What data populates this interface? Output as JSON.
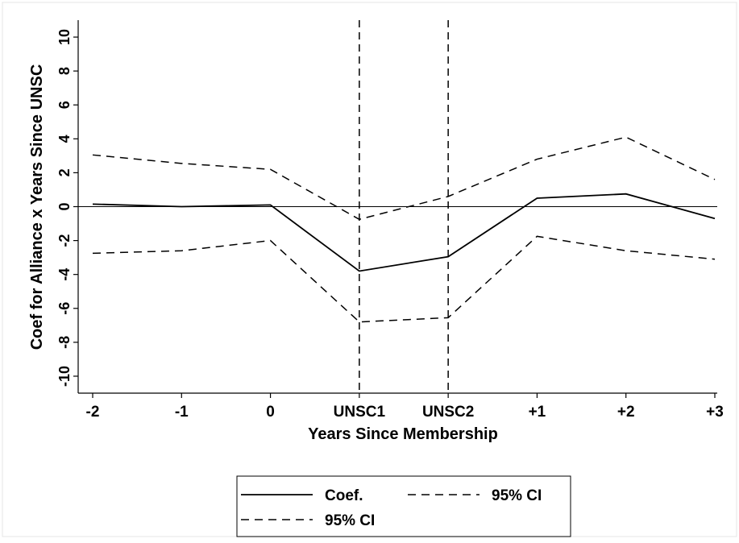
{
  "chart_data": {
    "type": "line",
    "x_categories": [
      "-2",
      "-1",
      "0",
      "UNSC1",
      "UNSC2",
      "+1",
      "+2",
      "+3"
    ],
    "xlabel": "Years Since Membership",
    "ylabel": "Coef for Alliance x Years Since UNSC",
    "ylim": [
      -11,
      11
    ],
    "yticks": [
      "-10",
      "-8",
      "-6",
      "-4",
      "-2",
      "0",
      "2",
      "4",
      "6",
      "8",
      "10"
    ],
    "series": [
      {
        "name": "Coef.",
        "style": "solid",
        "values": [
          0.15,
          0.0,
          0.1,
          -3.8,
          -2.95,
          0.5,
          0.75,
          -0.7
        ]
      },
      {
        "name": "95% CI",
        "style": "dashed",
        "values": [
          3.05,
          2.55,
          2.2,
          -0.75,
          0.6,
          2.8,
          4.1,
          1.6
        ]
      },
      {
        "name": "95% CI",
        "style": "dashed",
        "values": [
          -2.75,
          -2.6,
          -2.0,
          -6.8,
          -6.55,
          -1.75,
          -2.6,
          -3.1
        ]
      }
    ],
    "vlines_at": [
      "UNSC1",
      "UNSC2"
    ],
    "hline_at": 0,
    "legend_position": "bottom",
    "grid": false
  }
}
